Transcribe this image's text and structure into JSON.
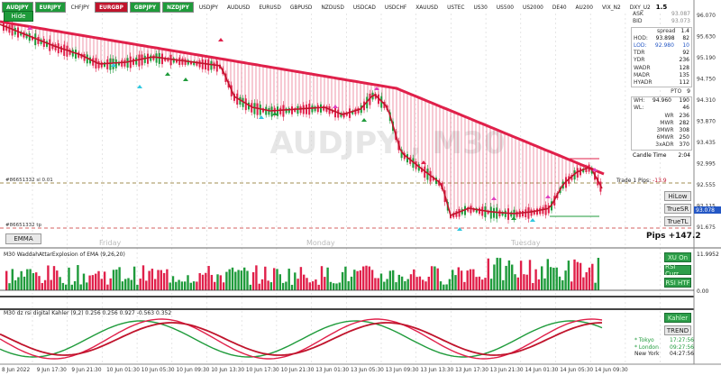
{
  "toolbar": {
    "symbols": [
      {
        "label": "AUDJPY",
        "style": "green"
      },
      {
        "label": "EURJPY",
        "style": "green"
      },
      {
        "label": "CHFJPY",
        "style": "plain"
      },
      {
        "label": "EURGBP",
        "style": "red"
      },
      {
        "label": "GBPJPY",
        "style": "green"
      },
      {
        "label": "NZDJPY",
        "style": "green"
      },
      {
        "label": "USDJPY",
        "style": "plain"
      },
      {
        "label": "AUDUSD",
        "style": "plain"
      },
      {
        "label": "EURUSD",
        "style": "plain"
      },
      {
        "label": "GBPUSD",
        "style": "plain"
      },
      {
        "label": "NZDUSD",
        "style": "plain"
      },
      {
        "label": "USDCAD",
        "style": "plain"
      },
      {
        "label": "USDCHF",
        "style": "plain"
      },
      {
        "label": "XAUUSD",
        "style": "plain"
      },
      {
        "label": "USTEC",
        "style": "plain"
      },
      {
        "label": "US30",
        "style": "plain"
      },
      {
        "label": "US500",
        "style": "plain"
      },
      {
        "label": "US2000",
        "style": "plain"
      },
      {
        "label": "DE40",
        "style": "plain"
      },
      {
        "label": "AU200",
        "style": "plain"
      },
      {
        "label": "VIX_N2",
        "style": "plain"
      },
      {
        "label": "DXY_U2",
        "style": "plain"
      }
    ]
  },
  "hide_button": "Hide",
  "watermark": "AUDJPY , M30",
  "info": {
    "top_value": "1.5",
    "ask_label": "ASK",
    "ask_value": "93.087",
    "bid_label": "BID",
    "bid_value": "93.073",
    "spread_label": "spread",
    "spread_value": "1.4",
    "rows": [
      {
        "k": "HOD:",
        "v1": "93.898",
        "v2": "82"
      },
      {
        "k": "LOD:",
        "v1": "92.980",
        "v2": "10"
      },
      {
        "k": "TDR",
        "v1": "",
        "v2": "92"
      },
      {
        "k": "YDR",
        "v1": "",
        "v2": "236"
      },
      {
        "k": "WADR",
        "v1": "",
        "v2": "128"
      },
      {
        "k": "MADR",
        "v1": "",
        "v2": "135"
      },
      {
        "k": "HYADR",
        "v1": "",
        "v2": "112"
      }
    ],
    "pto_label": "PTO",
    "pto_value": "9",
    "wh_label": "WH:",
    "wh_v1": "94.960",
    "wh_v2": "190",
    "wl_label": "WL:",
    "wl_v1": "",
    "wl_v2": "46",
    "rows2": [
      {
        "k": "WR",
        "v": "236"
      },
      {
        "k": "MWR",
        "v": "282"
      },
      {
        "k": "3MWR",
        "v": "308"
      },
      {
        "k": "6MWR",
        "v": "250"
      },
      {
        "k": "3xADR",
        "v": "370"
      }
    ],
    "candle_time_label": "Candle Time",
    "candle_time_value": "2:04"
  },
  "price_axis": {
    "labels": [
      "96.070",
      "95.630",
      "95.190",
      "94.750",
      "94.310",
      "93.870",
      "93.435",
      "92.995",
      "92.555",
      "92.115",
      "91.675"
    ],
    "current_price": "93.078"
  },
  "lines": {
    "line1_label": "#86651332 sl  0.01",
    "line2_label": "#86651332 tp",
    "trade_label": "Trade 1 Pips:",
    "trade_value": "-13.9"
  },
  "pips_label": "Pips +147.2",
  "buttons": {
    "emma": "EMMA",
    "hilow": "HiLow",
    "truesr": "TrueSR",
    "truetl": "TrueTL",
    "xu_on": "XU On",
    "rsi_curr": "RSI Curr",
    "rsi_htf": "RSI HTF",
    "kahler": "Kahler",
    "trend": "TREND"
  },
  "day_labels": [
    "Friday",
    "Monday",
    "Tuesday"
  ],
  "indicator1": {
    "title": "M30  WaddahAttarExplosion of EMA (9,26,20)",
    "axis": [
      "11.9952",
      "0.00"
    ]
  },
  "indicator2": {
    "title": "M30  dz rsi digital Kahler (9,2) 0.256 0.256 0.927 -0.563 0.352"
  },
  "time_axis": [
    "8 Jun 2022",
    "9 Jun 17:30",
    "9 Jun 21:30",
    "10 Jun 01:30",
    "10 Jun 05:30",
    "10 Jun 09:30",
    "10 Jun 13:30",
    "10 Jun 17:30",
    "10 Jun 21:30",
    "13 Jun 01:30",
    "13 Jun 05:30",
    "13 Jun 09:30",
    "13 Jun 13:30",
    "13 Jun 17:30",
    "13 Jun 21:30",
    "14 Jun 01:30",
    "14 Jun 05:30",
    "14 Jun 09:30"
  ],
  "sessions": [
    {
      "name": "* Tokyo",
      "time": "17:27:56",
      "style": "g"
    },
    {
      "name": "* London",
      "time": "09:27:56",
      "style": "g"
    },
    {
      "name": "New York",
      "time": "04:27:56",
      "style": "b"
    }
  ],
  "colors": {
    "bull": "#1f9b3b",
    "bear": "#e0204a",
    "ema": "#e0204a",
    "grid": "#d6d6d6"
  }
}
